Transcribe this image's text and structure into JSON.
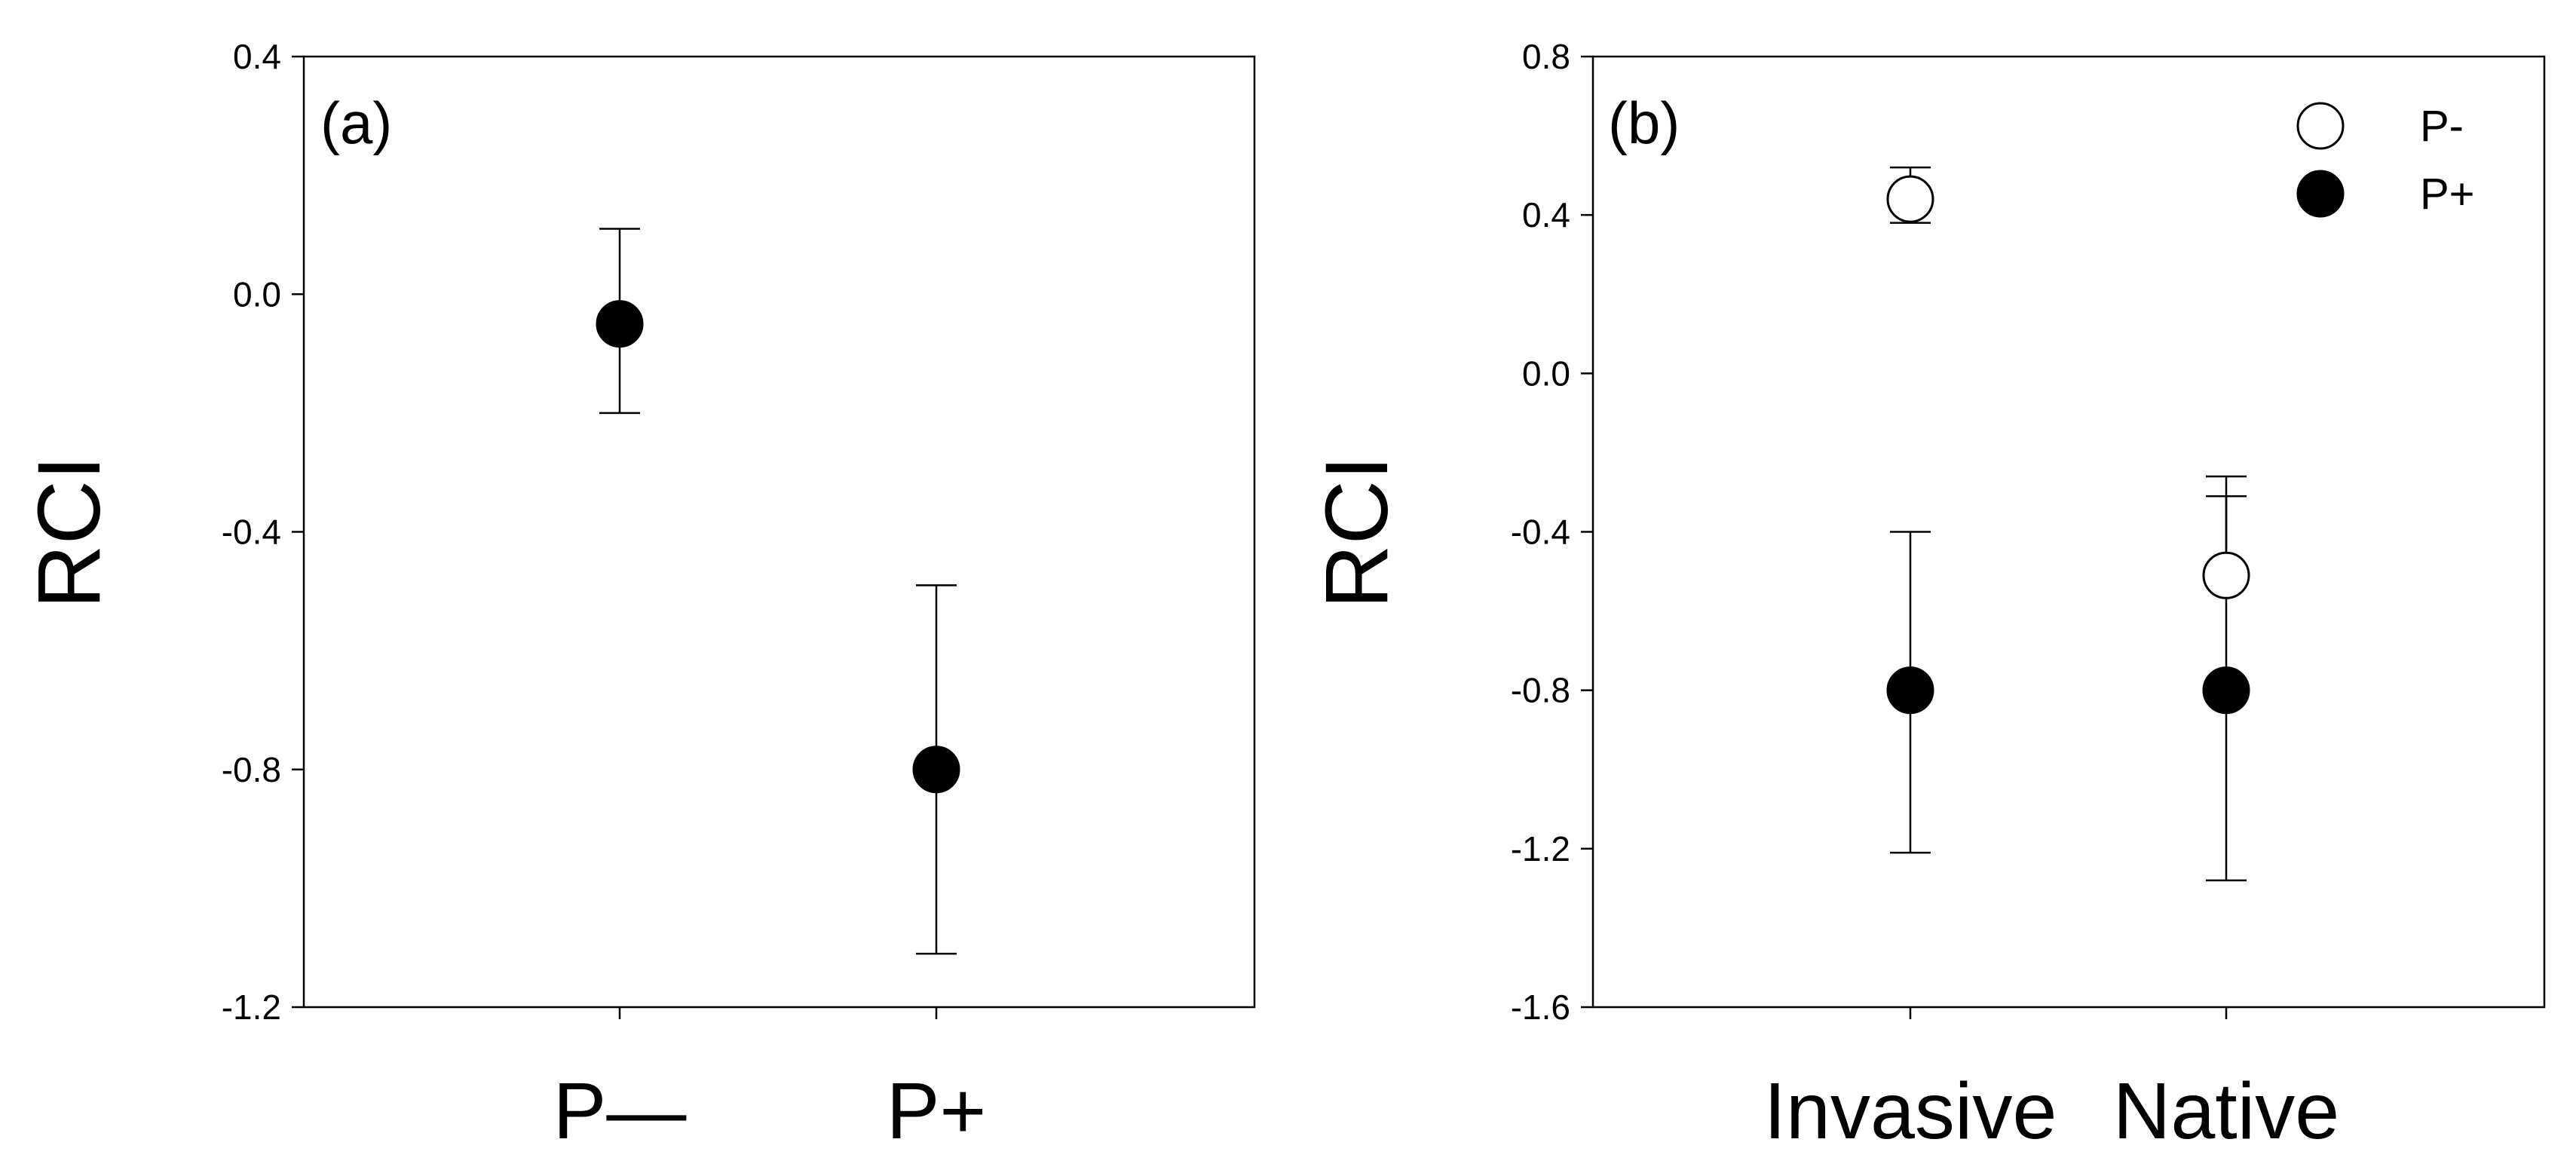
{
  "chart_data": [
    {
      "type": "scatter",
      "panel_label": "(a)",
      "ylabel": "RCI",
      "ylim": [
        -1.2,
        0.4
      ],
      "yticks": [
        "0.4",
        "0.0",
        "-0.4",
        "-0.8",
        "-1.2"
      ],
      "categories": [
        "P—",
        "P+"
      ],
      "grid": false,
      "series": [
        {
          "fill": "#000000",
          "values": [
            -0.05,
            -0.8
          ],
          "err_upper": [
            0.11,
            -0.49
          ],
          "err_lower": [
            -0.2,
            -1.11
          ]
        }
      ]
    },
    {
      "type": "scatter",
      "panel_label": "(b)",
      "ylabel": "RCI",
      "ylim": [
        -1.6,
        0.8
      ],
      "yticks": [
        "0.8",
        "0.4",
        "0.0",
        "-0.4",
        "-0.8",
        "-1.2",
        "-1.6"
      ],
      "categories": [
        "Invasive",
        "Native"
      ],
      "grid": false,
      "legend_position": "top-right",
      "series": [
        {
          "name": "P-",
          "fill": "#ffffff",
          "values": [
            0.44,
            -0.51
          ],
          "err_upper": [
            0.52,
            -0.31
          ],
          "err_lower": [
            0.38,
            -0.51
          ]
        },
        {
          "name": "P+",
          "fill": "#000000",
          "values": [
            -0.8,
            -0.8
          ],
          "err_upper": [
            -0.4,
            -0.26
          ],
          "err_lower": [
            -1.21,
            -1.28
          ]
        }
      ]
    }
  ]
}
